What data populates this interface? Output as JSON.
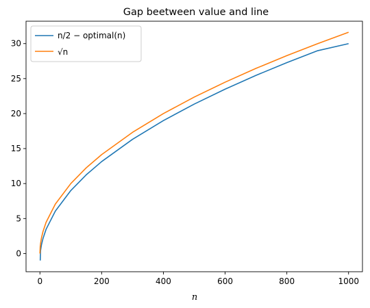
{
  "chart_data": {
    "type": "line",
    "title": "Gap beetween value and line",
    "xlabel": "n",
    "ylabel": "",
    "xlim": [
      -45,
      1045
    ],
    "ylim": [
      -2.6,
      33.2
    ],
    "xticks": [
      0,
      200,
      400,
      600,
      800,
      1000
    ],
    "yticks": [
      0,
      5,
      10,
      15,
      20,
      25,
      30
    ],
    "grid": false,
    "legend_position": "top-left",
    "series": [
      {
        "name": "n/2 − optimal(n)",
        "color": "#1f77b4",
        "x": [
          1,
          2,
          5,
          10,
          20,
          50,
          100,
          150,
          200,
          300,
          400,
          500,
          600,
          700,
          800,
          900,
          1000
        ],
        "y": [
          -1,
          0.41,
          1.24,
          2.16,
          3.47,
          6.07,
          9.0,
          11.25,
          13.14,
          16.32,
          19.0,
          21.36,
          23.49,
          25.46,
          27.28,
          28.99,
          30.0
        ]
      },
      {
        "name": "√n",
        "color": "#ff7f0e",
        "x": [
          0,
          1,
          2,
          5,
          10,
          20,
          50,
          100,
          150,
          200,
          300,
          400,
          500,
          600,
          700,
          800,
          900,
          1000
        ],
        "y": [
          0,
          1,
          1.41,
          2.24,
          3.16,
          4.47,
          7.07,
          10.0,
          12.25,
          14.14,
          17.32,
          20.0,
          22.36,
          24.49,
          26.46,
          28.28,
          30.0,
          31.62
        ]
      }
    ]
  }
}
